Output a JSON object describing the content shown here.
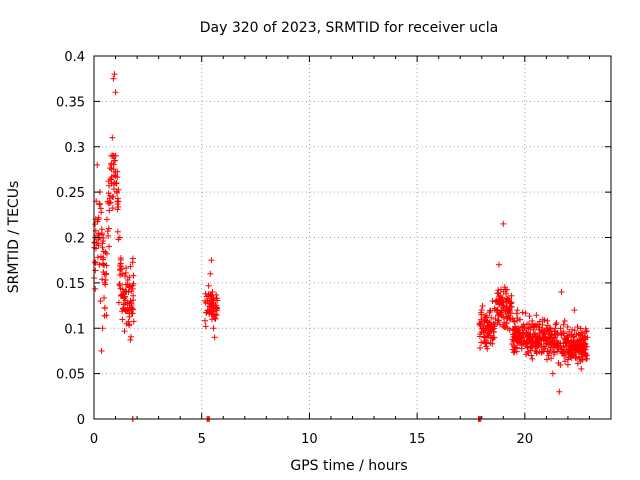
{
  "chart_data": {
    "type": "scatter",
    "title": "Day 320 of 2023, SRMTID for receiver ucla",
    "xlabel": "GPS time / hours",
    "ylabel": "SRMTID / TECUs",
    "xlim": [
      0,
      24
    ],
    "ylim": [
      0,
      0.4
    ],
    "x_ticks": [
      0,
      5,
      10,
      15,
      20
    ],
    "x_tick_labels": [
      "0",
      "5",
      "10",
      "15",
      "20"
    ],
    "y_ticks": [
      0,
      0.05,
      0.1,
      0.15,
      0.2,
      0.25,
      0.3,
      0.35,
      0.4
    ],
    "y_tick_labels": [
      "0",
      "0.05",
      "0.1",
      "0.15",
      "0.2",
      "0.25",
      "0.3",
      "0.35",
      "0.4"
    ],
    "grid": true,
    "marker": "+",
    "series_color": "#ff0000",
    "clusters": [
      {
        "x_range": [
          0.0,
          1.85
        ],
        "y_range": [
          0.07,
          0.38
        ],
        "count": 190
      },
      {
        "x_range": [
          5.15,
          5.75
        ],
        "y_range": [
          0.08,
          0.175
        ],
        "count": 55
      },
      {
        "x_range": [
          17.9,
          22.9
        ],
        "y_range": [
          0.03,
          0.22
        ],
        "count": 600
      }
    ],
    "points": [
      [
        0.05,
        0.2
      ],
      [
        0.1,
        0.24
      ],
      [
        0.15,
        0.28
      ],
      [
        0.2,
        0.22
      ],
      [
        0.25,
        0.17
      ],
      [
        0.3,
        0.13
      ],
      [
        0.35,
        0.075
      ],
      [
        0.4,
        0.1
      ],
      [
        0.5,
        0.15
      ],
      [
        0.6,
        0.22
      ],
      [
        0.7,
        0.19
      ],
      [
        0.8,
        0.28
      ],
      [
        0.85,
        0.31
      ],
      [
        0.9,
        0.375
      ],
      [
        0.95,
        0.38
      ],
      [
        1.0,
        0.36
      ],
      [
        1.05,
        0.26
      ],
      [
        1.1,
        0.24
      ],
      [
        1.2,
        0.2
      ],
      [
        1.3,
        0.16
      ],
      [
        1.4,
        0.14
      ],
      [
        1.5,
        0.12
      ],
      [
        1.6,
        0.14
      ],
      [
        1.7,
        0.13
      ],
      [
        1.8,
        0.0
      ],
      [
        5.3,
        0.12
      ],
      [
        5.4,
        0.16
      ],
      [
        5.45,
        0.175
      ],
      [
        5.5,
        0.14
      ],
      [
        5.55,
        0.1
      ],
      [
        5.6,
        0.09
      ],
      [
        5.3,
        0.0
      ],
      [
        17.9,
        0.0
      ],
      [
        18.0,
        0.12
      ],
      [
        18.2,
        0.08
      ],
      [
        18.5,
        0.13
      ],
      [
        18.8,
        0.17
      ],
      [
        19.0,
        0.215
      ],
      [
        19.3,
        0.12
      ],
      [
        19.6,
        0.09
      ],
      [
        20.0,
        0.1
      ],
      [
        20.3,
        0.07
      ],
      [
        20.6,
        0.08
      ],
      [
        21.0,
        0.1
      ],
      [
        21.3,
        0.05
      ],
      [
        21.6,
        0.03
      ],
      [
        21.7,
        0.14
      ],
      [
        22.0,
        0.06
      ],
      [
        22.3,
        0.12
      ],
      [
        22.6,
        0.08
      ],
      [
        22.9,
        0.09
      ]
    ]
  }
}
